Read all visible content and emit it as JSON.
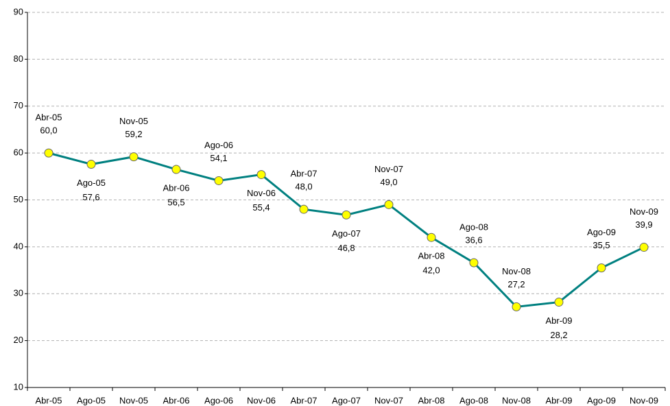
{
  "chart_data": {
    "type": "line",
    "categories": [
      "Abr-05",
      "Ago-05",
      "Nov-05",
      "Abr-06",
      "Ago-06",
      "Nov-06",
      "Abr-07",
      "Ago-07",
      "Nov-07",
      "Abr-08",
      "Ago-08",
      "Nov-08",
      "Abr-09",
      "Ago-09",
      "Nov-09"
    ],
    "values": [
      60.0,
      57.6,
      59.2,
      56.5,
      54.1,
      55.4,
      48.0,
      46.8,
      49.0,
      42.0,
      36.6,
      27.2,
      28.2,
      35.5,
      39.9
    ],
    "value_labels": [
      "60,0",
      "57,6",
      "59,2",
      "56,5",
      "54,1",
      "55,4",
      "48,0",
      "46,8",
      "49,0",
      "42,0",
      "36,6",
      "27,2",
      "28,2",
      "35,5",
      "39,9"
    ],
    "color": "#008080",
    "marker_color": "#ffff00",
    "ylim": [
      10,
      90
    ],
    "yticks": [
      10,
      20,
      30,
      40,
      50,
      60,
      70,
      80,
      90
    ],
    "grid": true
  }
}
